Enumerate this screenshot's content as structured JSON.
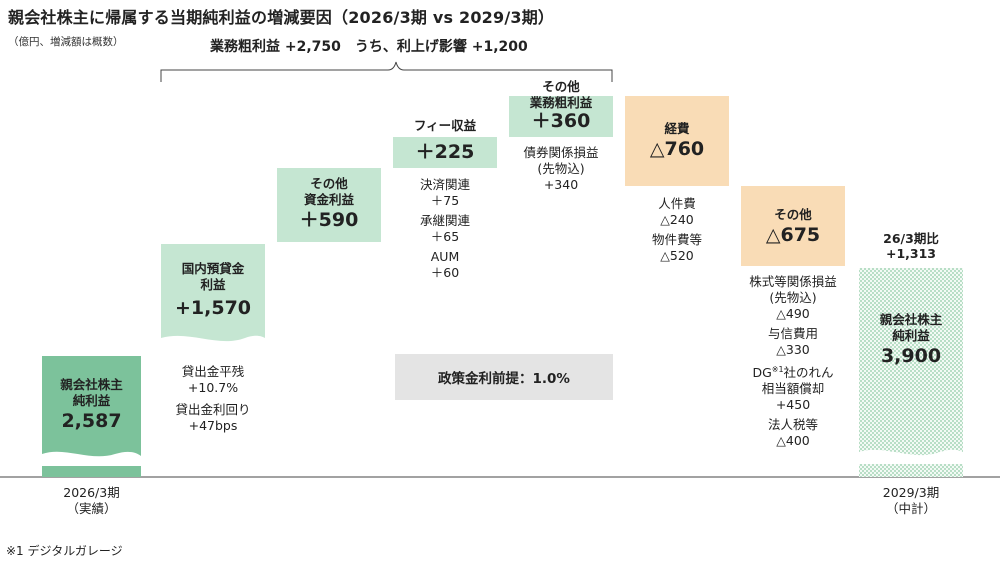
{
  "title": "親会社株主に帰属する当期純利益の増減要因（2026/3期 vs 2029/3期）",
  "unit_note": "（億円、増減額は概数）",
  "brace_label": "業務粗利益 +2,750　うち、利上げ影響 +1,200",
  "footnote": "※1 デジタルガレージ",
  "policy_box": "政策金利前提：1.0%",
  "colors": {
    "total_green": "#7cc29b",
    "income_green": "#c5e6d2",
    "expense_orange": "#f9dcb6",
    "target_dot": "#8fcaa5"
  },
  "bars": {
    "start": {
      "label1": "親会社株主",
      "label2": "純利益",
      "value": "2,587",
      "axis1": "2026/3期",
      "axis2": "（実績）"
    },
    "domestic": {
      "label1": "国内預貸金",
      "label2": "利益",
      "value": "+1,570",
      "subs": [
        "貸出金平残",
        "+10.7%",
        "貸出金利回り",
        "+47bps"
      ]
    },
    "other_interest": {
      "label1": "その他",
      "label2": "資金利益",
      "value": "＋590"
    },
    "fee": {
      "label": "フィー収益",
      "value": "＋225",
      "subs": [
        "決済関連",
        "＋75",
        "承継関連",
        "＋65",
        "AUM",
        "＋60"
      ]
    },
    "other_gross": {
      "label1": "その他",
      "label2": "業務粗利益",
      "value": "＋360",
      "subs": [
        "債券関係損益",
        "(先物込)",
        "+340"
      ]
    },
    "expenses": {
      "label": "経費",
      "value": "△760",
      "subs": [
        "人件費",
        "△240",
        "物件費等",
        "△520"
      ]
    },
    "other_cost": {
      "label": "その他",
      "value": "△675",
      "subs": [
        "株式等関係損益",
        "(先物込)",
        "△490",
        "与信費用",
        "△330",
        "DG",
        "※1",
        "社のれん",
        "相当額償却",
        "+450",
        "法人税等",
        "△400"
      ]
    },
    "end": {
      "label1": "親会社株主",
      "label2": "純利益",
      "value": "3,900",
      "compare1": "26/3期比",
      "compare2": "+1,313",
      "axis1": "2029/3期",
      "axis2": "（中計）"
    }
  },
  "chart_data": {
    "type": "bar",
    "subtype": "waterfall",
    "title": "親会社株主に帰属する当期純利益の増減要因（2026/3期 vs 2029/3期）",
    "unit": "億円",
    "categories": [
      "2026/3期（実績）",
      "国内預貸金利益",
      "その他資金利益",
      "フィー収益",
      "その他業務粗利益",
      "経費",
      "その他",
      "2029/3期（中計）"
    ],
    "values": [
      2587,
      1570,
      590,
      225,
      360,
      -760,
      -675,
      3900
    ],
    "kinds": [
      "total",
      "increase",
      "increase",
      "increase",
      "increase",
      "decrease",
      "decrease",
      "total"
    ],
    "breakdowns": {
      "国内預貸金利益": [
        {
          "name": "貸出金平残",
          "value": "+10.7%"
        },
        {
          "name": "貸出金利回り",
          "value": "+47bps"
        }
      ],
      "フィー収益": [
        {
          "name": "決済関連",
          "value": 75
        },
        {
          "name": "承継関連",
          "value": 65
        },
        {
          "name": "AUM",
          "value": 60
        }
      ],
      "その他業務粗利益": [
        {
          "name": "債券関係損益(先物込)",
          "value": 340
        }
      ],
      "経費": [
        {
          "name": "人件費",
          "value": -240
        },
        {
          "name": "物件費等",
          "value": -520
        }
      ],
      "その他": [
        {
          "name": "株式等関係損益(先物込)",
          "value": -490
        },
        {
          "name": "与信費用",
          "value": -330
        },
        {
          "name": "DG社のれん相当額償却",
          "value": 450
        },
        {
          "name": "法人税等",
          "value": -400
        }
      ]
    },
    "annotations": [
      "業務粗利益 +2,750　うち、利上げ影響 +1,200",
      "26/3期比 +1,313",
      "政策金利前提：1.0%"
    ]
  }
}
